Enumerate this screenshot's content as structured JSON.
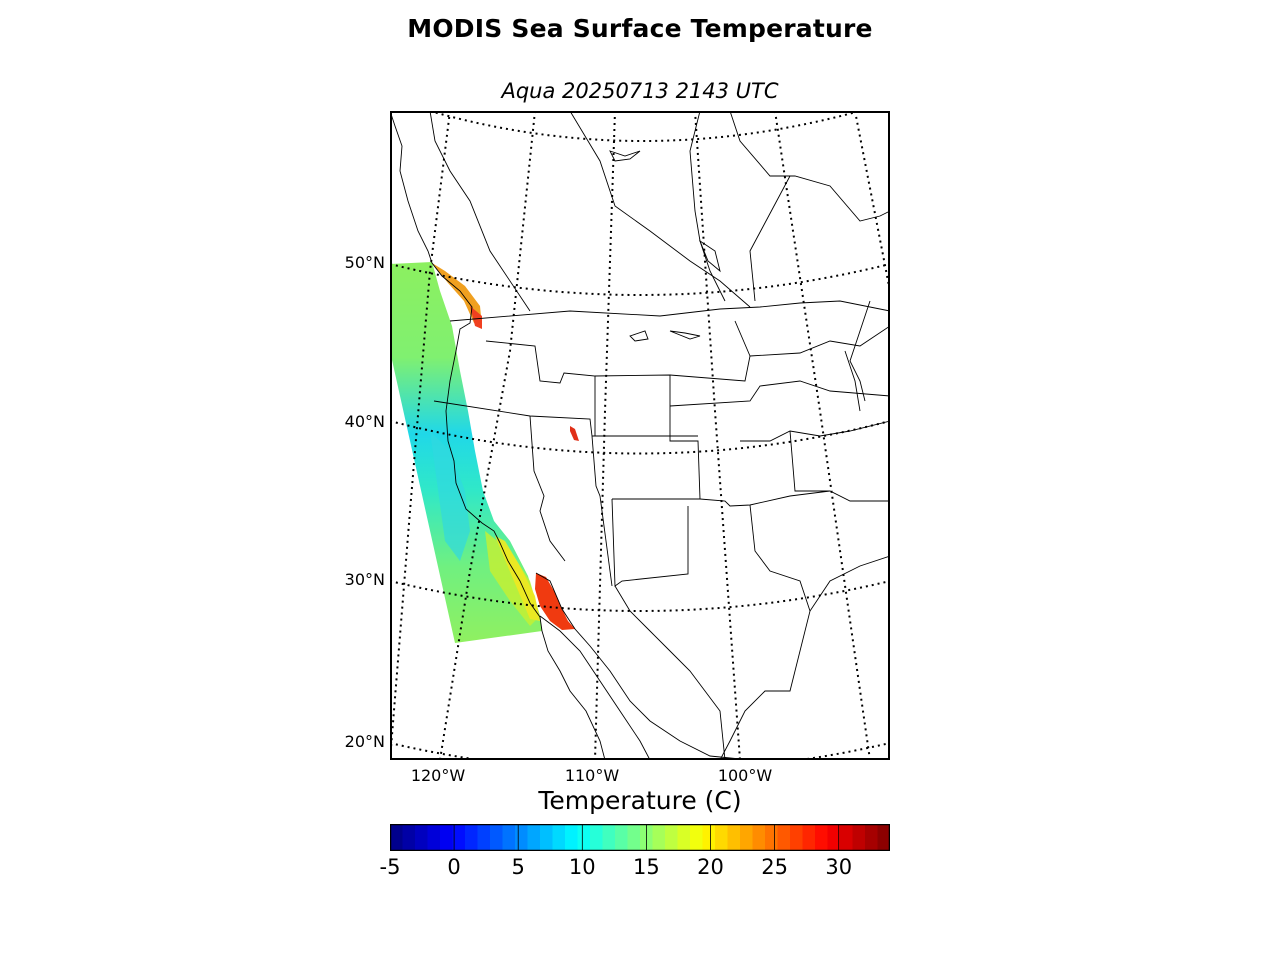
{
  "title": "MODIS Sea Surface Temperature",
  "subtitle": "Aqua 20250713 2143 UTC",
  "lat_labels": [
    "50°N",
    "40°N",
    "30°N",
    "20°N"
  ],
  "lon_labels": [
    "120°W",
    "110°W",
    "100°W"
  ],
  "colorbar": {
    "title": "Temperature (C)",
    "ticks": [
      "-5",
      "0",
      "5",
      "10",
      "15",
      "20",
      "25",
      "30"
    ],
    "min": -5,
    "max": 34,
    "colormap": "jet"
  },
  "colors": {
    "cold": "#00007f",
    "cool": "#0080ff",
    "mid": "#7fff7f",
    "warm": "#ffff00",
    "hot": "#ff3000",
    "hottest": "#7f0000"
  }
}
